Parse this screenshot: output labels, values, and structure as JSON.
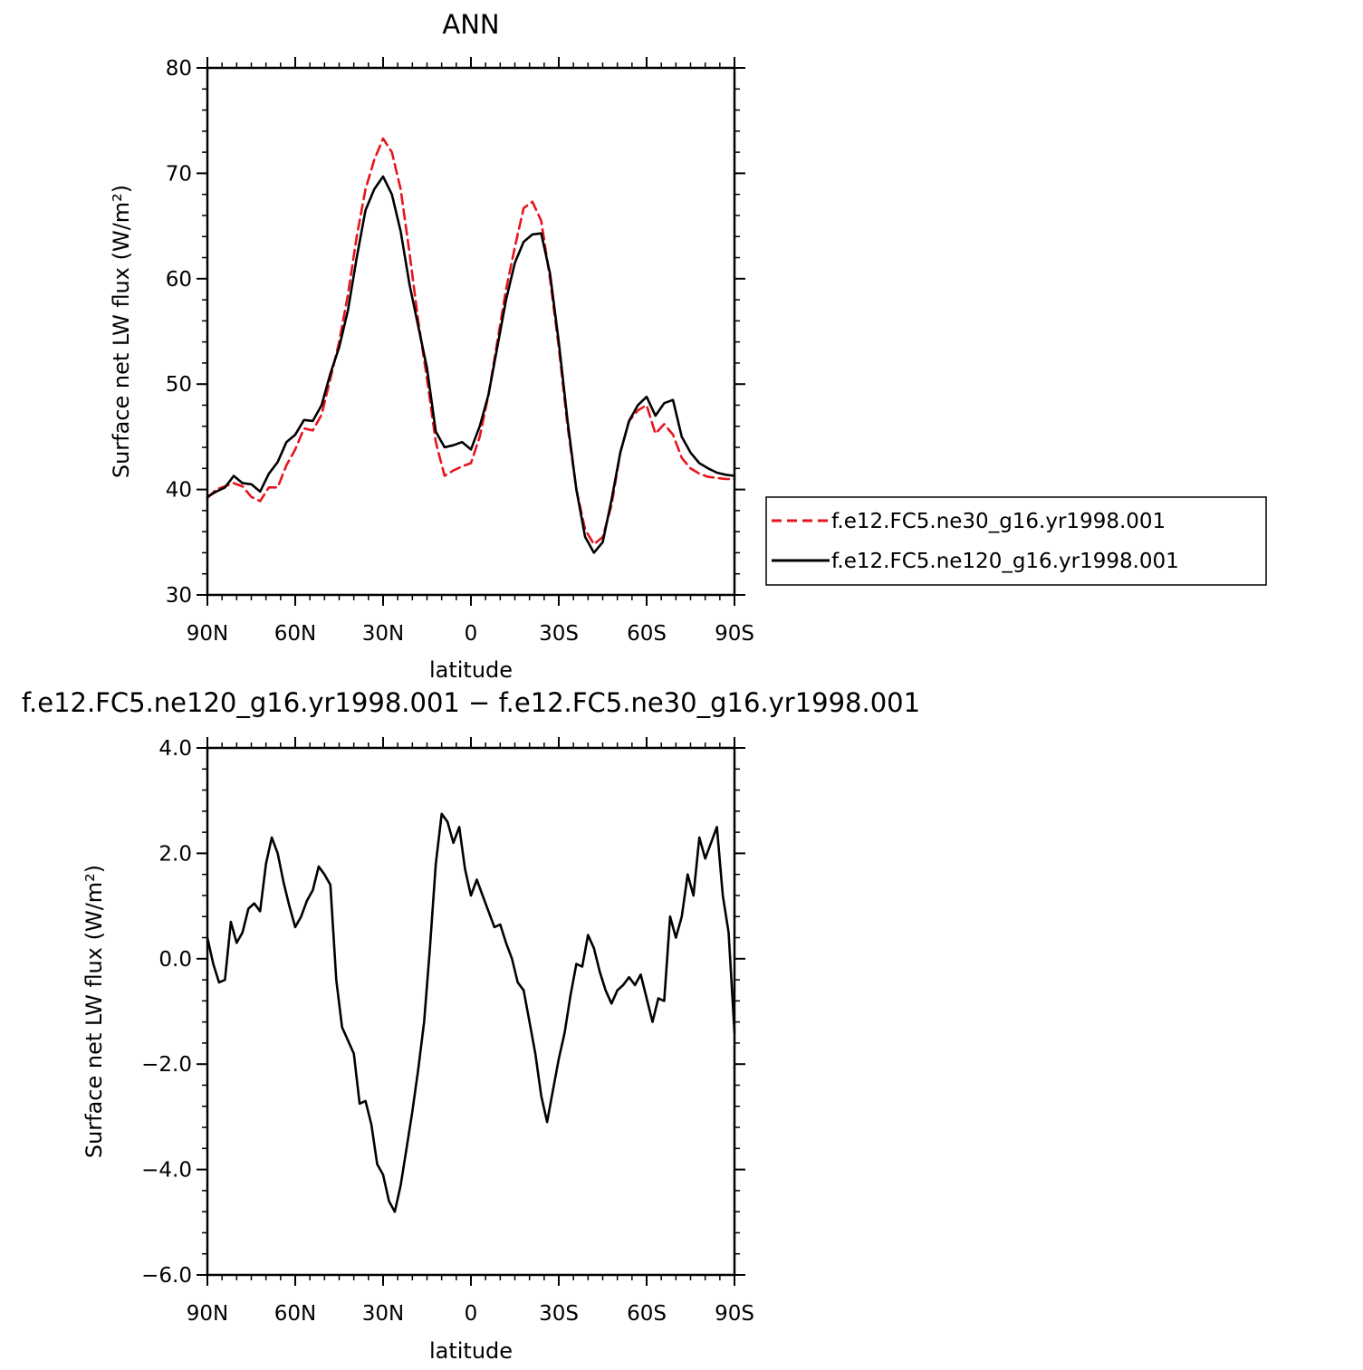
{
  "chart_data": [
    {
      "type": "line",
      "title": "ANN",
      "xlabel": "latitude",
      "ylabel": "Surface net LW flux (W/m²)",
      "xlim": [
        90,
        -90
      ],
      "ylim": [
        30,
        80
      ],
      "xticks": [
        90,
        60,
        30,
        0,
        -30,
        -60,
        -90
      ],
      "xtick_labels": [
        "90N",
        "60N",
        "30N",
        "0",
        "30S",
        "60S",
        "90S"
      ],
      "yticks": [
        30,
        40,
        50,
        60,
        70,
        80
      ],
      "ytick_labels": [
        "30",
        "40",
        "50",
        "60",
        "70",
        "80"
      ],
      "legend": "right",
      "series": [
        {
          "name": "f.e12.FC5.ne30_g16.yr1998.001",
          "color": "#e8141c",
          "dash": "dashed",
          "x": [
            90,
            87,
            84,
            81,
            78,
            75,
            72,
            69,
            66,
            63,
            60,
            57,
            54,
            51,
            48,
            45,
            42,
            39,
            36,
            33,
            30,
            27,
            24,
            21,
            18,
            15,
            12,
            9,
            6,
            3,
            0,
            -3,
            -6,
            -9,
            -12,
            -15,
            -18,
            -21,
            -24,
            -27,
            -30,
            -33,
            -36,
            -39,
            -42,
            -45,
            -48,
            -51,
            -54,
            -57,
            -60,
            -63,
            -66,
            -69,
            -72,
            -75,
            -78,
            -81,
            -84,
            -87,
            -90
          ],
          "y": [
            39.2,
            40.0,
            40.3,
            40.6,
            40.3,
            39.3,
            38.9,
            40.2,
            40.2,
            42.3,
            43.8,
            45.8,
            45.6,
            47.1,
            50.5,
            54.0,
            58.5,
            64.0,
            68.5,
            71.3,
            73.3,
            72.0,
            68.5,
            62.5,
            56.0,
            50.5,
            44.5,
            41.3,
            41.8,
            42.2,
            42.5,
            45.0,
            49.0,
            54.0,
            59.0,
            63.0,
            66.7,
            67.3,
            65.5,
            60.0,
            53.5,
            46.0,
            40.0,
            36.2,
            34.8,
            35.5,
            38.5,
            43.5,
            46.5,
            47.5,
            48.0,
            45.3,
            46.2,
            45.2,
            43.0,
            42.0,
            41.5,
            41.2,
            41.1,
            41.0,
            41.0
          ]
        },
        {
          "name": "f.e12.FC5.ne120_g16.yr1998.001",
          "color": "#000000",
          "dash": "solid",
          "x": [
            90,
            87,
            84,
            81,
            78,
            75,
            72,
            69,
            66,
            63,
            60,
            57,
            54,
            51,
            48,
            45,
            42,
            39,
            36,
            33,
            30,
            27,
            24,
            21,
            18,
            15,
            12,
            9,
            6,
            3,
            0,
            -3,
            -6,
            -9,
            -12,
            -15,
            -18,
            -21,
            -24,
            -27,
            -30,
            -33,
            -36,
            -39,
            -42,
            -45,
            -48,
            -51,
            -54,
            -57,
            -60,
            -63,
            -66,
            -69,
            -72,
            -75,
            -78,
            -81,
            -84,
            -87,
            -90
          ],
          "y": [
            39.3,
            39.8,
            40.2,
            41.3,
            40.6,
            40.5,
            39.8,
            41.5,
            42.6,
            44.5,
            45.2,
            46.6,
            46.5,
            48.0,
            51.0,
            53.5,
            57.0,
            62.0,
            66.5,
            68.5,
            69.7,
            68.0,
            64.5,
            59.5,
            55.5,
            51.5,
            45.5,
            44.0,
            44.2,
            44.5,
            43.8,
            46.0,
            49.0,
            53.5,
            58.0,
            61.5,
            63.5,
            64.2,
            64.3,
            60.5,
            54.0,
            46.5,
            40.0,
            35.5,
            34.0,
            35.0,
            39.0,
            43.5,
            46.5,
            48.0,
            48.8,
            47.0,
            48.2,
            48.5,
            45.0,
            43.5,
            42.5,
            42.0,
            41.6,
            41.4,
            41.3
          ]
        }
      ]
    },
    {
      "type": "line",
      "title": "f.e12.FC5.ne120_g16.yr1998.001 − f.e12.FC5.ne30_g16.yr1998.001",
      "xlabel": "latitude",
      "ylabel": "Surface net LW flux (W/m²)",
      "xlim": [
        90,
        -90
      ],
      "ylim": [
        -6.0,
        4.0
      ],
      "xticks": [
        90,
        60,
        30,
        0,
        -30,
        -60,
        -90
      ],
      "xtick_labels": [
        "90N",
        "60N",
        "30N",
        "0",
        "30S",
        "60S",
        "90S"
      ],
      "yticks": [
        4.0,
        2.0,
        0.0,
        -2.0,
        -4.0,
        -6.0
      ],
      "ytick_labels": [
        "4.0",
        "2.0",
        "0.0",
        "−2.0",
        "−4.0",
        "−6.0"
      ],
      "series": [
        {
          "color": "#000000",
          "x": [
            90,
            88,
            86,
            84,
            82,
            80,
            78,
            76,
            74,
            72,
            70,
            68,
            66,
            64,
            62,
            60,
            58,
            56,
            54,
            52,
            50,
            48,
            46,
            44,
            42,
            40,
            38,
            36,
            34,
            32,
            30,
            28,
            26,
            24,
            22,
            20,
            18,
            16,
            14,
            12,
            10,
            8,
            6,
            4,
            2,
            0,
            -2,
            -4,
            -6,
            -8,
            -10,
            -12,
            -14,
            -16,
            -18,
            -20,
            -22,
            -24,
            -26,
            -28,
            -30,
            -32,
            -34,
            -36,
            -38,
            -40,
            -42,
            -44,
            -46,
            -48,
            -50,
            -52,
            -54,
            -56,
            -58,
            -60,
            -62,
            -64,
            -66,
            -68,
            -70,
            -72,
            -74,
            -76,
            -78,
            -80,
            -82,
            -84,
            -86,
            -88,
            -90
          ],
          "y": [
            0.4,
            -0.1,
            -0.45,
            -0.4,
            0.7,
            0.3,
            0.5,
            0.95,
            1.05,
            0.9,
            1.8,
            2.3,
            2.0,
            1.45,
            1.0,
            0.6,
            0.8,
            1.1,
            1.3,
            1.75,
            1.6,
            1.4,
            -0.4,
            -1.3,
            -1.55,
            -1.8,
            -2.75,
            -2.7,
            -3.15,
            -3.9,
            -4.1,
            -4.6,
            -4.8,
            -4.3,
            -3.6,
            -2.9,
            -2.1,
            -1.2,
            0.2,
            1.8,
            2.75,
            2.6,
            2.2,
            2.5,
            1.7,
            1.2,
            1.5,
            1.2,
            0.9,
            0.6,
            0.65,
            0.3,
            0.0,
            -0.45,
            -0.6,
            -1.2,
            -1.8,
            -2.6,
            -3.1,
            -2.5,
            -1.9,
            -1.4,
            -0.7,
            -0.1,
            -0.15,
            0.45,
            0.2,
            -0.25,
            -0.6,
            -0.85,
            -0.6,
            -0.5,
            -0.35,
            -0.5,
            -0.3,
            -0.75,
            -1.2,
            -0.75,
            -0.8,
            0.8,
            0.4,
            0.8,
            1.6,
            1.2,
            2.3,
            1.9,
            2.2,
            2.5,
            1.2,
            0.5,
            -1.4
          ]
        }
      ]
    }
  ]
}
